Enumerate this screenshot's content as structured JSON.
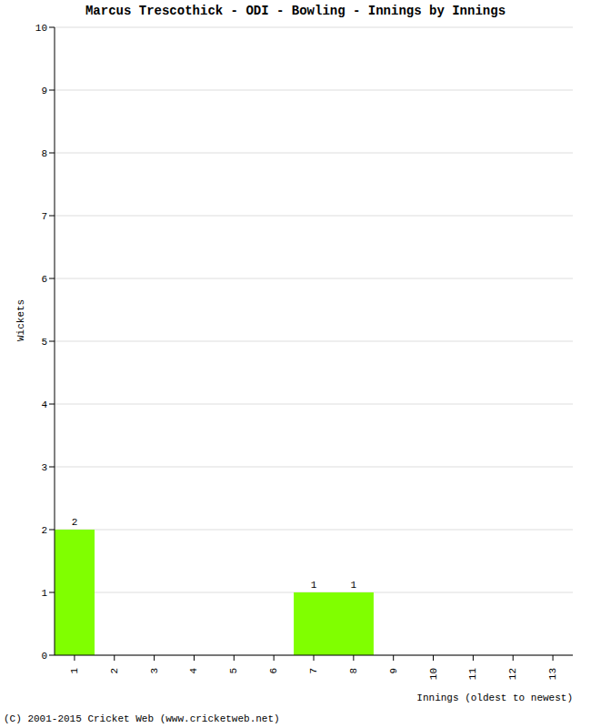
{
  "chart_data": {
    "type": "bar",
    "title": "Marcus Trescothick - ODI - Bowling - Innings by Innings",
    "x_label": "Innings (oldest to newest)",
    "y_label": "Wickets",
    "categories": [
      "1",
      "2",
      "3",
      "4",
      "5",
      "6",
      "7",
      "8",
      "9",
      "10",
      "11",
      "12",
      "13"
    ],
    "values": [
      2,
      0,
      0,
      0,
      0,
      0,
      1,
      1,
      0,
      0,
      0,
      0,
      0
    ],
    "color": "#80ff00",
    "ylim": [
      0,
      10
    ],
    "yticks": [
      0,
      1,
      2,
      3,
      4,
      5,
      6,
      7,
      8,
      9,
      10
    ],
    "grid": true,
    "data_labels": true,
    "annotations": [
      "(C) 2001-2015 Cricket Web (www.cricketweb.net)"
    ]
  }
}
